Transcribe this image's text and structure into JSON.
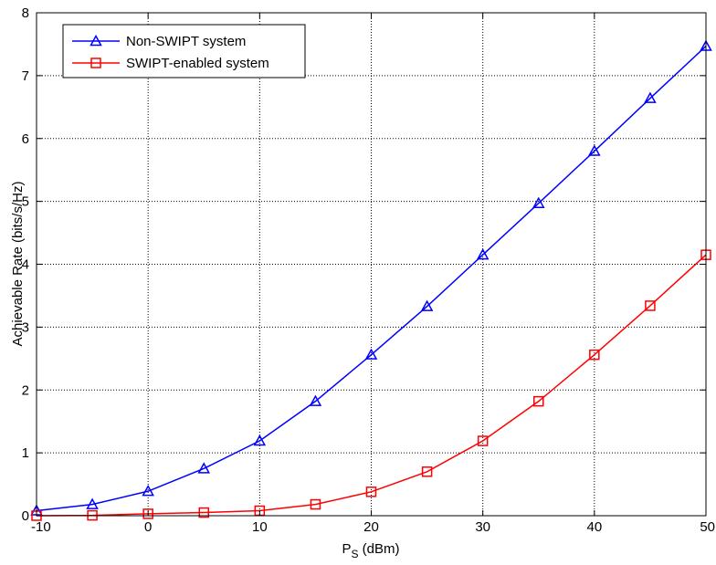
{
  "chart_data": {
    "type": "line",
    "title": "",
    "xlabel": "P",
    "xlabel_sub": "S",
    "xlabel_unit": " (dBm)",
    "ylabel": "Achievable Rate (bits/s/Hz)",
    "xlim": [
      -10,
      50
    ],
    "ylim": [
      0,
      8
    ],
    "xticks": [
      -10,
      0,
      10,
      20,
      30,
      40,
      50
    ],
    "yticks": [
      0,
      1,
      2,
      3,
      4,
      5,
      6,
      7,
      8
    ],
    "grid": true,
    "legend_position": "top-left",
    "x": [
      -10,
      -5,
      0,
      5,
      10,
      15,
      20,
      25,
      30,
      35,
      40,
      45,
      50
    ],
    "series": [
      {
        "name": "Non-SWIPT system",
        "color": "#0000ff",
        "marker": "triangle",
        "values": [
          0.08,
          0.18,
          0.39,
          0.75,
          1.19,
          1.82,
          2.56,
          3.33,
          4.15,
          4.97,
          5.8,
          6.64,
          7.47
        ]
      },
      {
        "name": "SWIPT-enabled system",
        "color": "#ff0000",
        "marker": "square",
        "values": [
          0.0,
          0.005,
          0.03,
          0.05,
          0.08,
          0.18,
          0.38,
          0.7,
          1.19,
          1.82,
          2.56,
          3.34,
          4.15
        ]
      }
    ]
  }
}
